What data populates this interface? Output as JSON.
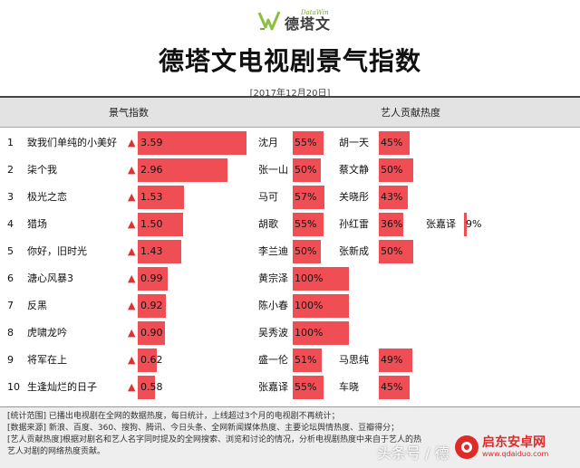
{
  "logo": {
    "en": "DataWin",
    "cn": "德塔文"
  },
  "title": "德塔文电视剧景气指数",
  "date": "[2017年12月20日]",
  "headers": {
    "index": "景气指数",
    "contrib": "艺人贡献热度"
  },
  "colors": {
    "bar": "#f04e55",
    "bar_light": "#f48a8f",
    "trend_up": "#e03030"
  },
  "chart_data": {
    "type": "table",
    "rows": [
      {
        "rank": "1",
        "name": "致我们单纯的小美好",
        "trend": "▲",
        "index": 3.59,
        "index_label": "3.59",
        "artists": [
          {
            "name": "沈月",
            "pct": 55,
            "label": "55%"
          },
          {
            "name": "胡一天",
            "pct": 45,
            "label": "45%"
          }
        ]
      },
      {
        "rank": "2",
        "name": "柒个我",
        "trend": "▲",
        "index": 2.96,
        "index_label": "2.96",
        "artists": [
          {
            "name": "张一山",
            "pct": 50,
            "label": "50%"
          },
          {
            "name": "蔡文静",
            "pct": 50,
            "label": "50%"
          }
        ]
      },
      {
        "rank": "3",
        "name": "极光之恋",
        "trend": "▲",
        "index": 1.53,
        "index_label": "1.53",
        "artists": [
          {
            "name": "马可",
            "pct": 57,
            "label": "57%"
          },
          {
            "name": "关晓彤",
            "pct": 43,
            "label": "43%"
          }
        ]
      },
      {
        "rank": "4",
        "name": "猎场",
        "trend": "▲",
        "index": 1.5,
        "index_label": "1.50",
        "artists": [
          {
            "name": "胡歌",
            "pct": 55,
            "label": "55%"
          },
          {
            "name": "孙红雷",
            "pct": 36,
            "label": "36%"
          },
          {
            "name": "张嘉译",
            "pct": 9,
            "label": "9%"
          }
        ]
      },
      {
        "rank": "5",
        "name": "你好，旧时光",
        "trend": "▲",
        "index": 1.43,
        "index_label": "1.43",
        "artists": [
          {
            "name": "李兰迪",
            "pct": 50,
            "label": "50%"
          },
          {
            "name": "张新成",
            "pct": 50,
            "label": "50%"
          }
        ]
      },
      {
        "rank": "6",
        "name": "溏心风暴3",
        "trend": "▲",
        "index": 0.99,
        "index_label": "0.99",
        "artists": [
          {
            "name": "黄宗泽",
            "pct": 100,
            "label": "100%"
          }
        ]
      },
      {
        "rank": "7",
        "name": "反黑",
        "trend": "▲",
        "index": 0.92,
        "index_label": "0.92",
        "artists": [
          {
            "name": "陈小春",
            "pct": 100,
            "label": "100%"
          }
        ]
      },
      {
        "rank": "8",
        "name": "虎啸龙吟",
        "trend": "▲",
        "index": 0.9,
        "index_label": "0.90",
        "artists": [
          {
            "name": "吴秀波",
            "pct": 100,
            "label": "100%"
          }
        ]
      },
      {
        "rank": "9",
        "name": "将军在上",
        "trend": "▲",
        "index": 0.62,
        "index_label": "0.62",
        "artists": [
          {
            "name": "盛一伦",
            "pct": 51,
            "label": "51%"
          },
          {
            "name": "马思纯",
            "pct": 49,
            "label": "49%"
          }
        ]
      },
      {
        "rank": "10",
        "name": "生逢灿烂的日子",
        "trend": "▲",
        "index": 0.58,
        "index_label": "0.58",
        "artists": [
          {
            "name": "张嘉译",
            "pct": 55,
            "label": "55%"
          },
          {
            "name": "车晓",
            "pct": 45,
            "label": "45%"
          }
        ]
      }
    ]
  },
  "footer": {
    "line1": "[统计范围] 已播出电视剧在全网的数据热度，每日统计，上线超过3个月的电视剧不再统计；",
    "line2": "[数据来源] 新浪、百度、360、搜狗、腾讯、今日头条、全网新闻媒体热度、主要论坛舆情热度、豆瓣得分；",
    "line3": "[艺人贡献热度]根据对剧名和艺人名字同时提及的全网搜索、浏览和讨论的情况，分析电视剧热度中来自于艺人的热",
    "line4": "艺人对剧的网络热度贡献。"
  },
  "watermark": {
    "left": "头条号 / 德",
    "right_cn": "启东安卓网",
    "right_url": "www.qdaiduo.com"
  }
}
